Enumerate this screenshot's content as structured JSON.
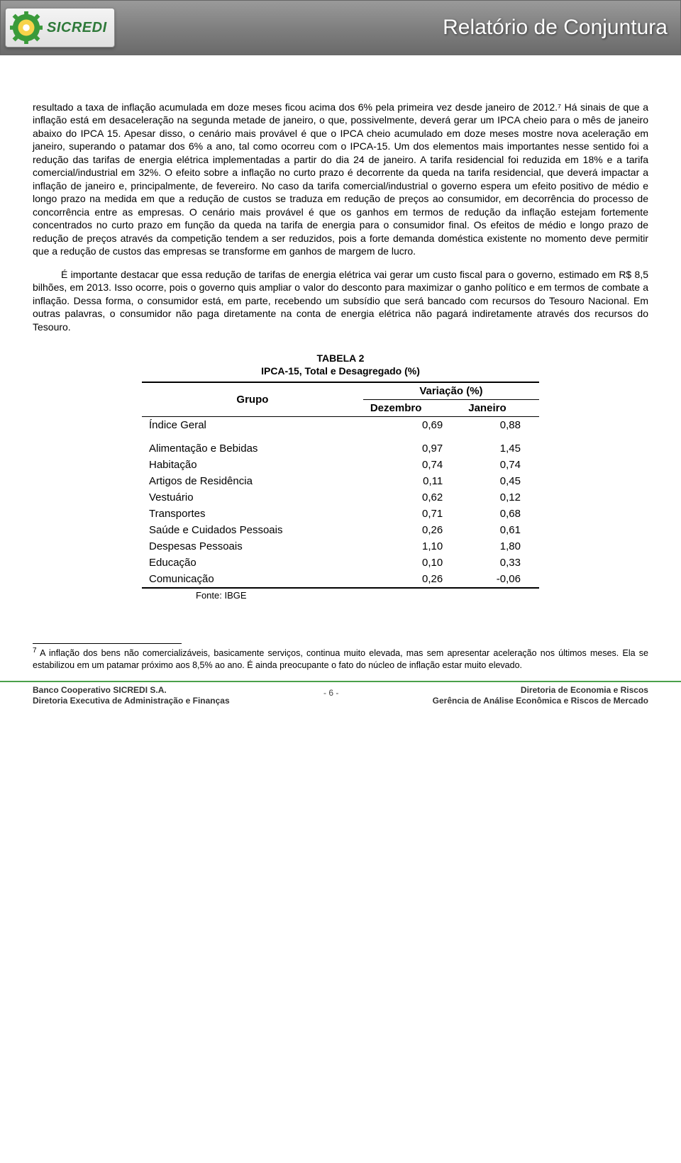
{
  "header": {
    "brand": "SICREDI",
    "title": "Relatório de Conjuntura",
    "gear_color": "#3a9a3a",
    "inner_color": "#f7d34a"
  },
  "body": {
    "para1": "resultado a taxa de inflação acumulada em doze meses ficou acima dos 6% pela primeira vez desde janeiro de 2012.⁷ Há sinais de que a inflação está em desaceleração na segunda metade de janeiro, o que, possivelmente, deverá gerar um IPCA cheio para o mês de janeiro abaixo do IPCA 15. Apesar disso, o cenário mais provável é que o IPCA cheio acumulado em doze meses mostre nova aceleração em janeiro, superando o patamar dos 6% a ano, tal como ocorreu com o IPCA-15. Um dos elementos mais importantes nesse sentido foi a redução das tarifas de energia elétrica implementadas a partir do dia 24 de janeiro. A tarifa residencial foi reduzida em 18% e a tarifa comercial/industrial em 32%. O efeito sobre a inflação no curto prazo é decorrente da queda na tarifa residencial, que deverá impactar a inflação de janeiro e, principalmente, de fevereiro. No caso da tarifa comercial/industrial o governo espera um efeito positivo de médio e longo prazo na medida em que a redução de custos se traduza em redução de preços ao consumidor, em decorrência do processo de concorrência entre as empresas. O cenário mais provável é que os ganhos em termos de redução da inflação estejam fortemente concentrados no curto prazo em função da queda na tarifa de energia para o consumidor final. Os efeitos de médio e longo prazo de redução de preços através da competição tendem a ser reduzidos, pois a forte demanda doméstica existente no momento deve permitir que a redução de custos das empresas se transforme em ganhos de margem de lucro.",
    "para2": "É importante destacar que essa redução de tarifas de energia elétrica vai gerar um custo fiscal para o governo, estimado em R$ 8,5 bilhões, em 2013. Isso ocorre, pois o governo quis ampliar o valor do desconto para maximizar o ganho político e em termos de combate a inflação. Dessa forma, o consumidor está, em parte, recebendo um subsídio que será bancado com recursos do Tesouro Nacional. Em outras palavras, o consumidor não paga diretamente na conta de energia elétrica não pagará indiretamente através dos recursos do Tesouro."
  },
  "table": {
    "title_line1": "TABELA 2",
    "title_line2": "IPCA-15, Total e Desagregado (%)",
    "col_group": "Grupo",
    "col_var": "Variação (%)",
    "col_dez": "Dezembro",
    "col_jan": "Janeiro",
    "rows": [
      {
        "label": "Índice Geral",
        "dez": "0,69",
        "jan": "0,88"
      },
      {
        "label": "Alimentação e Bebidas",
        "dez": "0,97",
        "jan": "1,45"
      },
      {
        "label": "Habitação",
        "dez": "0,74",
        "jan": "0,74"
      },
      {
        "label": "Artigos de Residência",
        "dez": "0,11",
        "jan": "0,45"
      },
      {
        "label": "Vestuário",
        "dez": "0,62",
        "jan": "0,12"
      },
      {
        "label": "Transportes",
        "dez": "0,71",
        "jan": "0,68"
      },
      {
        "label": "Saúde e Cuidados Pessoais",
        "dez": "0,26",
        "jan": "0,61"
      },
      {
        "label": "Despesas Pessoais",
        "dez": "1,10",
        "jan": "1,80"
      },
      {
        "label": "Educação",
        "dez": "0,10",
        "jan": "0,33"
      },
      {
        "label": "Comunicação",
        "dez": "0,26",
        "jan": "-0,06"
      }
    ],
    "source": "Fonte: IBGE"
  },
  "footnote": {
    "marker": "7",
    "text": "A inflação dos bens não comercializáveis, basicamente serviços, continua muito elevada, mas sem apresentar aceleração nos últimos meses. Ela se estabilizou em um patamar próximo aos 8,5% ao ano. É ainda preocupante o fato do núcleo de inflação estar muito elevado."
  },
  "footer": {
    "left_line1": "Banco Cooperativo SICREDI S.A.",
    "left_line2": "Diretoria Executiva de Administração e Finanças",
    "page": "- 6 -",
    "right_line1": "Diretoria de Economia e Riscos",
    "right_line2": "Gerência de Análise Econômica e Riscos de Mercado"
  }
}
